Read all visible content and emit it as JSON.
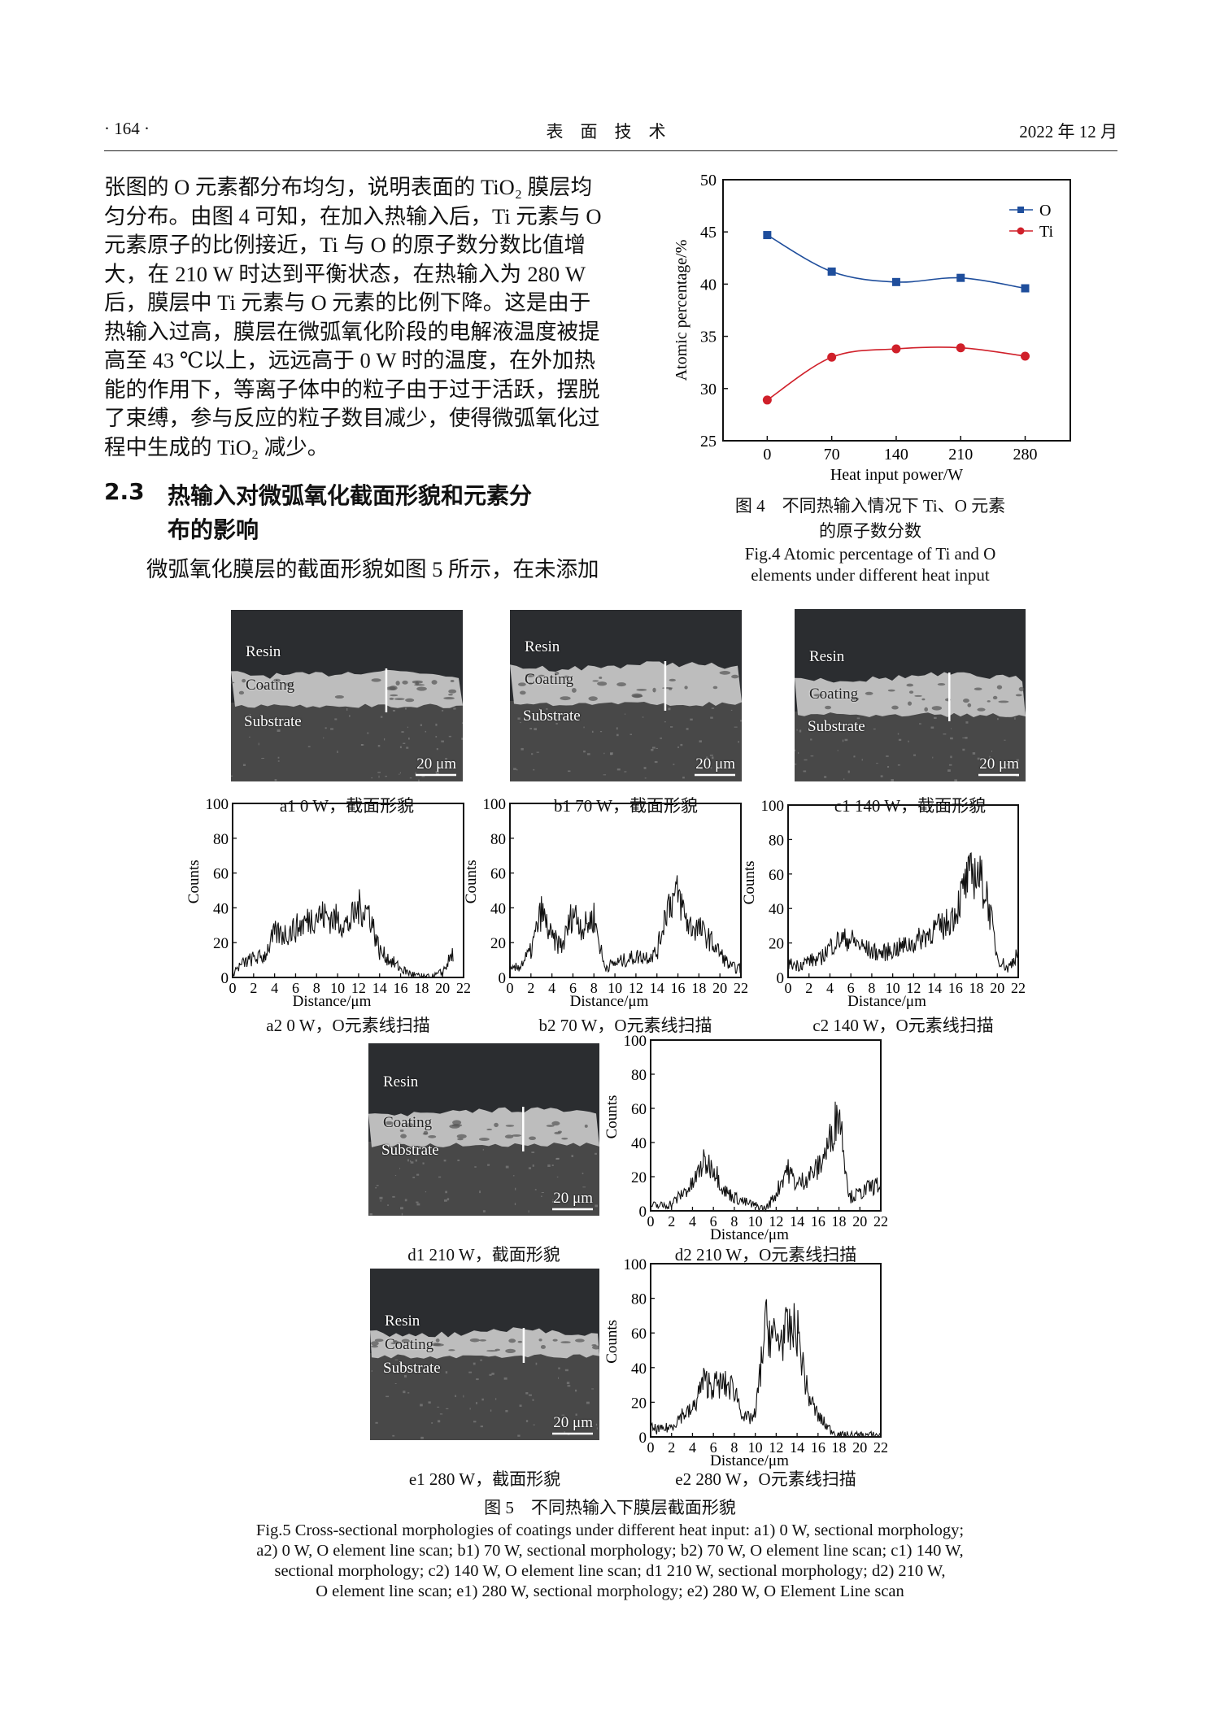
{
  "header": {
    "page": "· 164 ·",
    "journal": "表　面　技　术",
    "date": "2022 年 12 月"
  },
  "body": {
    "lines": [
      "张图的 O 元素都分布均匀，说明表面的 TiO₂ 膜层均",
      "匀分布。由图 4 可知，在加入热输入后，Ti 元素与 O",
      "元素原子的比例接近，Ti 与 O 的原子数分数比值增",
      "大，在 210  W 时达到平衡状态，在热输入为 280  W",
      "后，膜层中 Ti 元素与 O 元素的比例下降。这是由于",
      "热输入过高，膜层在微弧氧化阶段的电解液温度被提",
      "高至 43  ℃以上，远远高于 0 W 时的温度，在外加热",
      "能的作用下，等离子体中的粒子由于过于活跃，摆脱",
      "了束缚，参与反应的粒子数目减少，使得微弧氧化过",
      "程中生成的 TiO₂ 减少。"
    ],
    "section_number": "2.3",
    "section_title_line1": "热输入对微弧氧化截面形貌和元素分",
    "section_title_line2": "布的影响",
    "paragraph": "微弧氧化膜层的截面形貌如图 5 所示，在未添加"
  },
  "fig4": {
    "caption_cn_line1": "图 4　不同热输入情况下 Ti、O 元素",
    "caption_cn_line2": "的原子数分数",
    "caption_en_line1": "Fig.4 Atomic percentage of Ti and O",
    "caption_en_line2": "elements under different heat input"
  },
  "fig5": {
    "caption_cn": "图 5　不同热输入下膜层截面形貌",
    "caption_en": [
      "Fig.5 Cross-sectional morphologies of coatings under different heat input: a1) 0 W, sectional morphology;",
      "a2) 0 W, O element line scan; b1) 70 W, sectional morphology; b2) 70 W, O element line scan; c1) 140 W,",
      "sectional morphology; c2) 140 W, O element line scan; d1 210 W, sectional morphology; d2) 210 W,",
      "O element line scan; e1) 280 W, sectional morphology; e2) 280 W, O Element Line scan"
    ],
    "sem": [
      {
        "id": "a1",
        "caption": "a1  0 W，截面形貌",
        "resin": "Resin",
        "coating": "Coating",
        "substrate": "Substrate",
        "scale": "20 μm"
      },
      {
        "id": "b1",
        "caption": "b1  70 W，截面形貌",
        "resin": "Resin",
        "coating": "Coating",
        "substrate": "Substrate",
        "scale": "20 μm"
      },
      {
        "id": "c1",
        "caption": "c1  140 W，截面形貌",
        "resin": "Resin",
        "coating": "Coating",
        "substrate": "Substrate",
        "scale": "20 μm"
      },
      {
        "id": "d1",
        "caption": "d1  210 W，截面形貌",
        "resin": "Resin",
        "coating": "Coating",
        "substrate": "Substrate",
        "scale": "20 μm"
      },
      {
        "id": "e1",
        "caption": "e1  280 W，截面形貌",
        "resin": "Resin",
        "coating": "Coating",
        "substrate": "Substrate",
        "scale": "20 μm"
      }
    ],
    "scan_captions": [
      "a2  0 W，O元素线扫描",
      "b2  70 W，O元素线扫描",
      "c2  140 W，O元素线扫描",
      "d2  210 W，O元素线扫描",
      "e2  280 W，O元素线扫描"
    ]
  },
  "chart_data": [
    {
      "id": "fig4",
      "type": "line",
      "xlabel": "Heat input power/W",
      "ylabel": "Atomic percentage/%",
      "x": [
        0,
        70,
        140,
        210,
        280
      ],
      "xticks": [
        "0",
        "70",
        "140",
        "210",
        "280"
      ],
      "yticks": [
        "25",
        "30",
        "35",
        "40",
        "45",
        "50"
      ],
      "ylim": [
        25,
        50
      ],
      "xlim": [
        -48,
        329
      ],
      "legend": "top-right",
      "grid": false,
      "series": [
        {
          "name": "O",
          "marker": "square",
          "color": "#1f4e9c",
          "values": [
            44.7,
            41.2,
            40.2,
            40.6,
            39.6
          ]
        },
        {
          "name": "Ti",
          "marker": "circle",
          "color": "#d0202a",
          "values": [
            28.9,
            33.0,
            33.8,
            33.9,
            33.1
          ]
        }
      ]
    },
    {
      "id": "a2",
      "type": "line",
      "xlabel": "Distance/μm",
      "ylabel": "Counts",
      "xlim": [
        0,
        22
      ],
      "ylim": [
        0,
        100
      ],
      "xticks": [
        "0",
        "2",
        "4",
        "6",
        "8",
        "10",
        "12",
        "14",
        "16",
        "18",
        "20",
        "22"
      ],
      "yticks": [
        "0",
        "20",
        "40",
        "60",
        "80",
        "100"
      ],
      "x_step": 1,
      "values": [
        3,
        8,
        11,
        12,
        25,
        25,
        28,
        32,
        36,
        35,
        33,
        30,
        40,
        38,
        15,
        10,
        5,
        2,
        0,
        0,
        3,
        14
      ]
    },
    {
      "id": "b2",
      "type": "line",
      "xlabel": "Distance/μm",
      "ylabel": "Counts",
      "xlim": [
        0,
        22
      ],
      "ylim": [
        0,
        100
      ],
      "xticks": [
        "0",
        "2",
        "4",
        "6",
        "8",
        "10",
        "12",
        "14",
        "16",
        "18",
        "20",
        "22"
      ],
      "yticks": [
        "0",
        "20",
        "40",
        "60",
        "80",
        "100"
      ],
      "x_step": 1,
      "values": [
        3,
        7,
        15,
        38,
        22,
        18,
        38,
        28,
        35,
        6,
        8,
        10,
        12,
        12,
        14,
        42,
        48,
        30,
        28,
        22,
        14,
        6,
        5
      ]
    },
    {
      "id": "c2",
      "type": "line",
      "xlabel": "Distance/μm",
      "ylabel": "Counts",
      "xlim": [
        0,
        22
      ],
      "ylim": [
        0,
        100
      ],
      "xticks": [
        "0",
        "2",
        "4",
        "6",
        "8",
        "10",
        "12",
        "14",
        "16",
        "18",
        "20",
        "22"
      ],
      "yticks": [
        "0",
        "20",
        "40",
        "60",
        "80",
        "100"
      ],
      "x_step": 1,
      "values": [
        8,
        7,
        10,
        10,
        18,
        22,
        22,
        18,
        15,
        14,
        16,
        18,
        20,
        24,
        28,
        30,
        38,
        55,
        62,
        48,
        12,
        5,
        15
      ]
    },
    {
      "id": "d2",
      "type": "line",
      "xlabel": "Distance/μm",
      "ylabel": "Counts",
      "xlim": [
        0,
        22
      ],
      "ylim": [
        0,
        100
      ],
      "xticks": [
        "0",
        "2",
        "4",
        "6",
        "8",
        "10",
        "12",
        "14",
        "16",
        "18",
        "20",
        "22"
      ],
      "yticks": [
        "0",
        "20",
        "40",
        "60",
        "80",
        "100"
      ],
      "x_step": 1,
      "values": [
        3,
        3,
        4,
        10,
        15,
        28,
        26,
        12,
        8,
        5,
        3,
        1,
        10,
        25,
        15,
        20,
        25,
        38,
        60,
        8,
        10,
        14,
        15
      ]
    },
    {
      "id": "e2",
      "type": "line",
      "xlabel": "Distance/μm",
      "ylabel": "Counts",
      "xlim": [
        0,
        22
      ],
      "ylim": [
        0,
        100
      ],
      "xticks": [
        "0",
        "2",
        "4",
        "6",
        "8",
        "10",
        "12",
        "14",
        "16",
        "18",
        "20",
        "22"
      ],
      "yticks": [
        "0",
        "20",
        "40",
        "60",
        "80",
        "100"
      ],
      "x_step": 1,
      "values": [
        5,
        4,
        6,
        13,
        15,
        32,
        30,
        30,
        28,
        10,
        12,
        65,
        55,
        60,
        62,
        25,
        12,
        5,
        1,
        1,
        1,
        1,
        1
      ]
    }
  ]
}
